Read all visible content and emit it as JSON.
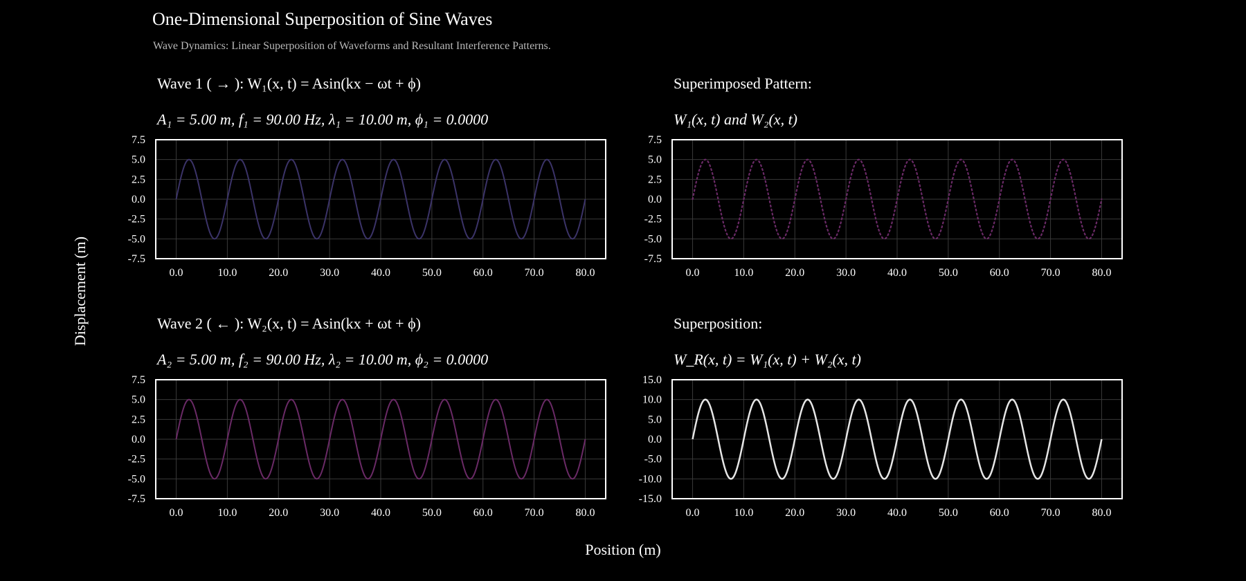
{
  "figure": {
    "title": "One-Dimensional Superposition of Sine Waves",
    "subtitle": "Wave Dynamics: Linear Superposition of Waveforms and Resultant Interference Patterns.",
    "xlabel": "Position (m)",
    "ylabel": "Displacement (m)"
  },
  "colors": {
    "background": "#000000",
    "wave1": "#3b3368",
    "wave2": "#6a2a66",
    "overlay": "#6a2a66",
    "resultant": "#e6e6e6",
    "frame": "#ffffff",
    "grid": "#3a3a3a"
  },
  "chart_data": [
    {
      "type": "line",
      "title_line1": "Wave 1 ( → ):    W₁(x, t) = Asin(kx − ωt + ϕ)",
      "title_line2": "A₁ = 5.00 m,   f₁ = 90.00 Hz,   λ₁ = 10.00 m,   ϕ₁ = 0.0000",
      "xlim": [
        -4,
        84
      ],
      "ylim": [
        -7.5,
        7.5
      ],
      "xticks": [
        "0.0",
        "10.0",
        "20.0",
        "30.0",
        "40.0",
        "50.0",
        "60.0",
        "70.0",
        "80.0"
      ],
      "yticks": [
        "7.5",
        "5.0",
        "2.5",
        "0.0",
        "-2.5",
        "-5.0",
        "-7.5"
      ],
      "grid": true,
      "series": [
        {
          "formula": "A*sin(2*pi*x/lambda)",
          "amplitude": 5.0,
          "wavelength": 10.0,
          "phase": 0.0,
          "x_range": [
            0,
            80
          ],
          "style": "solid"
        }
      ]
    },
    {
      "type": "line",
      "title_line1": "Superimposed Pattern:",
      "title_line2": "W₁(x, t)  and  W₂(x, t)",
      "xlim": [
        -4,
        84
      ],
      "ylim": [
        -7.5,
        7.5
      ],
      "xticks": [
        "0.0",
        "10.0",
        "20.0",
        "30.0",
        "40.0",
        "50.0",
        "60.0",
        "70.0",
        "80.0"
      ],
      "yticks": [
        "7.5",
        "5.0",
        "2.5",
        "0.0",
        "-2.5",
        "-5.0",
        "-7.5"
      ],
      "grid": true,
      "series": [
        {
          "formula": "A*sin(2*pi*x/lambda)",
          "amplitude": 5.0,
          "wavelength": 10.0,
          "phase": 0.0,
          "x_range": [
            0,
            80
          ],
          "style": "dotted"
        }
      ]
    },
    {
      "type": "line",
      "title_line1": "Wave 2 ( ← ):    W₂(x, t) = Asin(kx + ωt + ϕ)",
      "title_line2": "A₂ = 5.00 m,   f₂ = 90.00 Hz,   λ₂ = 10.00 m,   ϕ₂ = 0.0000",
      "xlim": [
        -4,
        84
      ],
      "ylim": [
        -7.5,
        7.5
      ],
      "xticks": [
        "0.0",
        "10.0",
        "20.0",
        "30.0",
        "40.0",
        "50.0",
        "60.0",
        "70.0",
        "80.0"
      ],
      "yticks": [
        "7.5",
        "5.0",
        "2.5",
        "0.0",
        "-2.5",
        "-5.0",
        "-7.5"
      ],
      "grid": true,
      "series": [
        {
          "formula": "A*sin(2*pi*x/lambda)",
          "amplitude": 5.0,
          "wavelength": 10.0,
          "phase": 0.0,
          "x_range": [
            0,
            80
          ],
          "style": "solid"
        }
      ]
    },
    {
      "type": "line",
      "title_line1": "Superposition:",
      "title_line2": "W_R(x, t) = W₁(x, t) + W₂(x, t)",
      "xlim": [
        -4,
        84
      ],
      "ylim": [
        -15,
        15
      ],
      "xticks": [
        "0.0",
        "10.0",
        "20.0",
        "30.0",
        "40.0",
        "50.0",
        "60.0",
        "70.0",
        "80.0"
      ],
      "yticks": [
        "15.0",
        "10.0",
        "5.0",
        "0.0",
        "-5.0",
        "-10.0",
        "-15.0"
      ],
      "grid": true,
      "series": [
        {
          "formula": "A*sin(2*pi*x/lambda)",
          "amplitude": 10.0,
          "wavelength": 10.0,
          "phase": 0.0,
          "x_range": [
            0,
            80
          ],
          "style": "solid"
        }
      ]
    }
  ]
}
